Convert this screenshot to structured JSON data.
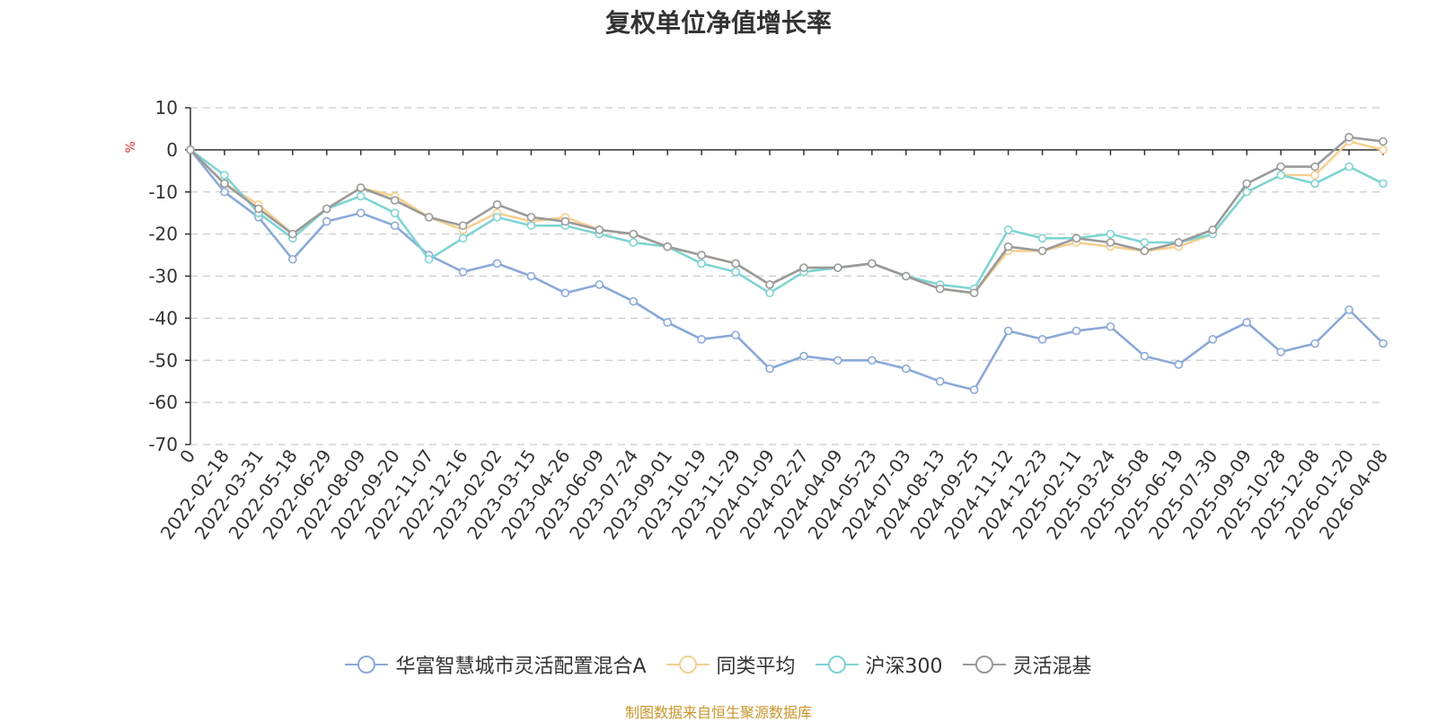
{
  "chart_data": {
    "type": "line",
    "title": "复权单位净值增长率",
    "ylabel": "%",
    "ylim": [
      -70,
      10
    ],
    "yticks": [
      10,
      0,
      -10,
      -20,
      -30,
      -40,
      -50,
      -60,
      -70
    ],
    "grid": true,
    "legend_position": "bottom",
    "x": [
      "0",
      "2022-02-18",
      "2022-03-31",
      "2022-05-18",
      "2022-06-29",
      "2022-08-09",
      "2022-09-20",
      "2022-11-07",
      "2022-12-16",
      "2023-02-02",
      "2023-03-15",
      "2023-04-26",
      "2023-06-09",
      "2023-07-24",
      "2023-09-01",
      "2023-10-19",
      "2023-11-29",
      "2024-01-09",
      "2024-02-27",
      "2024-04-09",
      "2024-05-23",
      "2024-07-03",
      "2024-08-13",
      "2024-09-25",
      "2024-11-12",
      "2024-12-23",
      "2025-02-11",
      "2025-03-24",
      "2025-05-08",
      "2025-06-19",
      "2025-07-30",
      "2025-09-09",
      "2025-10-28",
      "2025-12-08",
      "2026-01-20",
      "2026-04-08"
    ],
    "series": [
      {
        "name": "华富智慧城市灵活配置混合A",
        "color": "#8aa9d8",
        "values": [
          0,
          -10,
          -16,
          -26,
          -17,
          -15,
          -18,
          -25,
          -29,
          -27,
          -30,
          -34,
          -32,
          -36,
          -41,
          -45,
          -44,
          -52,
          -49,
          -50,
          -50,
          -52,
          -55,
          -57,
          -43,
          -45,
          -43,
          -42,
          -49,
          -51,
          -45,
          -41,
          -48,
          -46,
          -38,
          -46
        ]
      },
      {
        "name": "同类平均",
        "color": "#f5cf8f",
        "values": [
          0,
          -8,
          -13,
          -20,
          -14,
          -9,
          -11,
          -16,
          -19,
          -15,
          -17,
          -16,
          -19,
          -20,
          -23,
          -25,
          -27,
          -32,
          -28,
          -28,
          -27,
          -30,
          -33,
          -34,
          -24,
          -24,
          -22,
          -23,
          -24,
          -23,
          -20,
          -10,
          -6,
          -6,
          2,
          0
        ]
      },
      {
        "name": "沪深300",
        "color": "#7fd4d4",
        "values": [
          0,
          -6,
          -15,
          -21,
          -14,
          -11,
          -15,
          -26,
          -21,
          -16,
          -18,
          -18,
          -20,
          -22,
          -23,
          -27,
          -29,
          -34,
          -29,
          -28,
          -27,
          -30,
          -32,
          -33,
          -19,
          -21,
          -21,
          -20,
          -22,
          -22,
          -20,
          -10,
          -6,
          -8,
          -4,
          -8
        ]
      },
      {
        "name": "灵活混基",
        "color": "#9a9a9a",
        "values": [
          0,
          -8,
          -14,
          -20,
          -14,
          -9,
          -12,
          -16,
          -18,
          -13,
          -16,
          -17,
          -19,
          -20,
          -23,
          -25,
          -27,
          -32,
          -28,
          -28,
          -27,
          -30,
          -33,
          -34,
          -23,
          -24,
          -21,
          -22,
          -24,
          -22,
          -19,
          -8,
          -4,
          -4,
          3,
          2
        ]
      }
    ]
  },
  "source_note": "制图数据来自恒生聚源数据库"
}
